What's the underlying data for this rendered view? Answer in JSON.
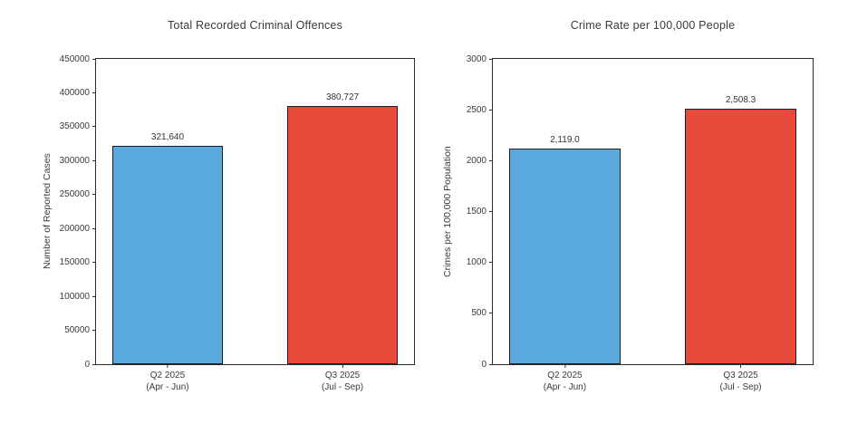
{
  "figure": {
    "background": "#ffffff",
    "text_color": "#3a3a3a",
    "spine_color": "#2b2b2b"
  },
  "chart_data": [
    {
      "type": "bar",
      "title": "Total Recorded Criminal Offences",
      "xlabel": "",
      "ylabel": "Number of Reported Cases",
      "categories": [
        "Q2 2025\n(Apr - Jun)",
        "Q3 2025\n(Jul - Sep)"
      ],
      "values": [
        321640,
        380727
      ],
      "value_labels": [
        "321,640",
        "380,727"
      ],
      "bar_colors": [
        "#5AA9DC",
        "#E8493B"
      ],
      "bar_edge_color": "#1f1f1f",
      "ylim": [
        0,
        450000
      ],
      "yticks": [
        0,
        50000,
        100000,
        150000,
        200000,
        250000,
        300000,
        350000,
        400000,
        450000
      ],
      "ytick_labels": [
        "0",
        "50000",
        "100000",
        "150000",
        "200000",
        "250000",
        "300000",
        "350000",
        "400000",
        "450000"
      ],
      "grid": false,
      "legend": null,
      "bar_centers": [
        0.225,
        0.775
      ],
      "bar_width": 0.35
    },
    {
      "type": "bar",
      "title": "Crime Rate per 100,000 People",
      "xlabel": "",
      "ylabel": "Crimes per 100,000 Population",
      "categories": [
        "Q2 2025\n(Apr - Jun)",
        "Q3 2025\n(Jul - Sep)"
      ],
      "values": [
        2119.0,
        2508.3
      ],
      "value_labels": [
        "2,119.0",
        "2,508.3"
      ],
      "bar_colors": [
        "#5AA9DC",
        "#E8493B"
      ],
      "bar_edge_color": "#1f1f1f",
      "ylim": [
        0,
        3000
      ],
      "yticks": [
        0,
        500,
        1000,
        1500,
        2000,
        2500,
        3000
      ],
      "ytick_labels": [
        "0",
        "500",
        "1000",
        "1500",
        "2000",
        "2500",
        "3000"
      ],
      "grid": false,
      "legend": null,
      "bar_centers": [
        0.225,
        0.775
      ],
      "bar_width": 0.35
    }
  ]
}
